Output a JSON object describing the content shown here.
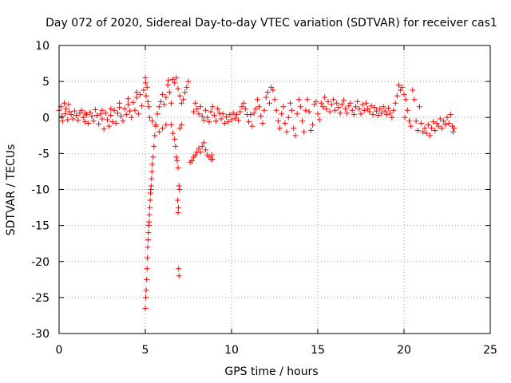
{
  "chart_data": {
    "type": "scatter",
    "title": "Day 072 of 2020, Sidereal Day-to-day VTEC variation (SDTVAR) for receiver cas1",
    "xlabel": "GPS time / hours",
    "ylabel": "SDTVAR / TECUs",
    "xlim": [
      0,
      25
    ],
    "ylim": [
      -30,
      10
    ],
    "xticks": [
      0,
      5,
      10,
      15,
      20,
      25
    ],
    "yticks": [
      -30,
      -25,
      -20,
      -15,
      -10,
      -5,
      0,
      5,
      10
    ],
    "grid": true,
    "marker": "+",
    "series": [
      {
        "name": "cas1",
        "color": "#ff0000",
        "points": [
          [
            0.0,
            1.0
          ],
          [
            0.1,
            1.5
          ],
          [
            0.15,
            0.2
          ],
          [
            0.2,
            -0.5
          ],
          [
            0.3,
            2.0
          ],
          [
            0.35,
            0.5
          ],
          [
            0.4,
            1.2
          ],
          [
            0.5,
            -0.3
          ],
          [
            0.55,
            1.8
          ],
          [
            0.6,
            0.8
          ],
          [
            0.7,
            0.4
          ],
          [
            0.8,
            -0.2
          ],
          [
            0.9,
            0.9
          ],
          [
            1.0,
            0.3
          ],
          [
            1.1,
            -0.4
          ],
          [
            1.2,
            0.6
          ],
          [
            1.3,
            1.0
          ],
          [
            1.4,
            0.0
          ],
          [
            1.5,
            -0.6
          ],
          [
            1.6,
            0.4
          ],
          [
            1.7,
            -0.8
          ],
          [
            1.8,
            0.7
          ],
          [
            1.9,
            0.2
          ],
          [
            2.0,
            -0.5
          ],
          [
            2.1,
            1.1
          ],
          [
            2.2,
            0.3
          ],
          [
            2.3,
            -0.9
          ],
          [
            2.4,
            0.5
          ],
          [
            2.5,
            -0.2
          ],
          [
            2.6,
            -1.6
          ],
          [
            2.7,
            0.6
          ],
          [
            2.8,
            -0.3
          ],
          [
            2.9,
            -1.2
          ],
          [
            3.0,
            0.3
          ],
          [
            3.1,
            -0.6
          ],
          [
            3.2,
            1.0
          ],
          [
            3.3,
            -0.8
          ],
          [
            3.4,
            0.6
          ],
          [
            3.5,
            1.4
          ],
          [
            3.6,
            0.2
          ],
          [
            3.7,
            -0.5
          ],
          [
            3.8,
            1.2
          ],
          [
            3.9,
            0.4
          ],
          [
            4.0,
            1.8
          ],
          [
            4.1,
            0.9
          ],
          [
            4.2,
            0.0
          ],
          [
            4.3,
            2.1
          ],
          [
            4.4,
            1.0
          ],
          [
            4.5,
            2.8
          ],
          [
            4.6,
            0.5
          ],
          [
            4.7,
            3.2
          ],
          [
            4.8,
            1.6
          ],
          [
            4.9,
            3.8
          ],
          [
            5.0,
            5.5
          ],
          [
            5.02,
            4.8
          ],
          [
            5.05,
            3.0
          ],
          [
            5.1,
            4.2
          ],
          [
            5.15,
            2.2
          ],
          [
            5.2,
            1.5
          ],
          [
            5.25,
            0.0
          ],
          [
            5.0,
            -26.5
          ],
          [
            5.03,
            -25.0
          ],
          [
            5.05,
            -24.0
          ],
          [
            5.08,
            -22.5
          ],
          [
            5.1,
            -21.0
          ],
          [
            5.12,
            -19.5
          ],
          [
            5.14,
            -18.0
          ],
          [
            5.16,
            -17.0
          ],
          [
            5.18,
            -16.0
          ],
          [
            5.2,
            -15.0
          ],
          [
            5.22,
            -14.5
          ],
          [
            5.24,
            -13.5
          ],
          [
            5.26,
            -12.5
          ],
          [
            5.28,
            -11.5
          ],
          [
            5.3,
            -10.5
          ],
          [
            5.32,
            -10.0
          ],
          [
            5.34,
            -9.5
          ],
          [
            5.36,
            -8.5
          ],
          [
            5.38,
            -7.5
          ],
          [
            5.4,
            -6.5
          ],
          [
            5.45,
            -5.5
          ],
          [
            5.5,
            -4.0
          ],
          [
            5.55,
            -2.5
          ],
          [
            5.6,
            -1.0
          ],
          [
            5.7,
            0.5
          ],
          [
            5.8,
            1.5
          ],
          [
            5.9,
            2.2
          ],
          [
            6.0,
            3.2
          ],
          [
            6.1,
            1.8
          ],
          [
            6.2,
            2.8
          ],
          [
            6.3,
            4.5
          ],
          [
            6.35,
            5.2
          ],
          [
            6.4,
            3.5
          ],
          [
            6.5,
            2.0
          ],
          [
            6.6,
            5.3
          ],
          [
            6.7,
            4.8
          ],
          [
            6.8,
            5.5
          ],
          [
            6.9,
            4.0
          ],
          [
            7.0,
            3.0
          ],
          [
            7.1,
            2.0
          ],
          [
            6.5,
            -1.0
          ],
          [
            6.6,
            -2.2
          ],
          [
            6.7,
            -3.0
          ],
          [
            6.75,
            -4.0
          ],
          [
            6.8,
            -5.5
          ],
          [
            6.85,
            -6.0
          ],
          [
            6.9,
            -7.0
          ],
          [
            6.95,
            -9.5
          ],
          [
            6.98,
            -10.0
          ],
          [
            6.88,
            -11.5
          ],
          [
            6.92,
            -12.5
          ],
          [
            6.9,
            -13.2
          ],
          [
            6.93,
            -21.0
          ],
          [
            6.95,
            -22.0
          ],
          [
            7.0,
            -1.5
          ],
          [
            7.1,
            -1.0
          ],
          [
            7.2,
            2.5
          ],
          [
            7.3,
            3.5
          ],
          [
            7.4,
            4.2
          ],
          [
            7.5,
            5.0
          ],
          [
            7.6,
            -6.2
          ],
          [
            7.7,
            -6.0
          ],
          [
            7.8,
            -5.5
          ],
          [
            7.9,
            -5.2
          ],
          [
            8.0,
            -4.8
          ],
          [
            8.1,
            -4.3
          ],
          [
            8.2,
            -4.8
          ],
          [
            8.3,
            -4.0
          ],
          [
            8.4,
            -3.5
          ],
          [
            8.5,
            -4.5
          ],
          [
            8.6,
            -5.2
          ],
          [
            8.7,
            -5.5
          ],
          [
            8.8,
            -5.8
          ],
          [
            8.85,
            -5.2
          ],
          [
            8.9,
            -5.8
          ],
          [
            5.4,
            -0.5
          ],
          [
            5.6,
            -1.2
          ],
          [
            5.8,
            -2.0
          ],
          [
            6.0,
            -1.5
          ],
          [
            6.2,
            -1.0
          ],
          [
            7.8,
            0.8
          ],
          [
            7.9,
            2.0
          ],
          [
            8.0,
            1.2
          ],
          [
            8.1,
            0.5
          ],
          [
            8.2,
            1.5
          ],
          [
            8.3,
            0.2
          ],
          [
            8.4,
            -0.4
          ],
          [
            8.5,
            1.0
          ],
          [
            8.6,
            0.0
          ],
          [
            8.7,
            -0.6
          ],
          [
            8.8,
            0.8
          ],
          [
            8.9,
            1.5
          ],
          [
            9.0,
            0.3
          ],
          [
            9.1,
            -0.5
          ],
          [
            9.2,
            1.2
          ],
          [
            9.3,
            0.6
          ],
          [
            9.4,
            -0.2
          ],
          [
            9.5,
            0.5
          ],
          [
            9.6,
            -0.8
          ],
          [
            9.7,
            0.1
          ],
          [
            9.8,
            -0.6
          ],
          [
            9.9,
            0.4
          ],
          [
            10.0,
            -0.3
          ],
          [
            10.1,
            0.6
          ],
          [
            10.2,
            -0.1
          ],
          [
            10.3,
            0.4
          ],
          [
            10.4,
            -0.4
          ],
          [
            10.5,
            0.8
          ],
          [
            10.6,
            1.5
          ],
          [
            10.7,
            2.0
          ],
          [
            10.8,
            1.2
          ],
          [
            10.9,
            0.4
          ],
          [
            11.0,
            -0.6
          ],
          [
            11.1,
            0.4
          ],
          [
            11.2,
            -1.2
          ],
          [
            11.3,
            0.6
          ],
          [
            11.4,
            1.2
          ],
          [
            11.5,
            2.5
          ],
          [
            11.6,
            1.5
          ],
          [
            11.7,
            0.2
          ],
          [
            11.8,
            -0.8
          ],
          [
            11.9,
            1.0
          ],
          [
            12.0,
            2.8
          ],
          [
            12.1,
            3.5
          ],
          [
            12.2,
            2.0
          ],
          [
            12.3,
            4.2
          ],
          [
            12.4,
            3.8
          ],
          [
            12.5,
            2.5
          ],
          [
            12.6,
            1.0
          ],
          [
            12.7,
            -0.5
          ],
          [
            12.8,
            -1.5
          ],
          [
            12.9,
            0.5
          ],
          [
            13.0,
            1.5
          ],
          [
            13.1,
            -0.8
          ],
          [
            13.2,
            -2.0
          ],
          [
            13.3,
            0.0
          ],
          [
            13.4,
            2.0
          ],
          [
            13.5,
            1.0
          ],
          [
            13.6,
            -1.5
          ],
          [
            13.7,
            -2.5
          ],
          [
            13.8,
            0.5
          ],
          [
            13.9,
            2.5
          ],
          [
            14.0,
            1.5
          ],
          [
            14.1,
            -0.5
          ],
          [
            14.2,
            -2.0
          ],
          [
            14.3,
            1.0
          ],
          [
            14.4,
            2.5
          ],
          [
            14.5,
            0.8
          ],
          [
            14.6,
            -1.8
          ],
          [
            14.7,
            -1.0
          ],
          [
            14.8,
            1.8
          ],
          [
            14.9,
            2.2
          ],
          [
            15.0,
            0.5
          ],
          [
            15.1,
            -0.3
          ],
          [
            15.2,
            2.0
          ],
          [
            15.3,
            1.5
          ],
          [
            15.4,
            2.8
          ],
          [
            15.5,
            1.2
          ],
          [
            15.6,
            2.2
          ],
          [
            15.7,
            0.8
          ],
          [
            15.8,
            1.8
          ],
          [
            15.9,
            2.5
          ],
          [
            16.0,
            1.0
          ],
          [
            16.1,
            2.0
          ],
          [
            16.2,
            1.4
          ],
          [
            16.3,
            0.6
          ],
          [
            16.4,
            1.8
          ],
          [
            16.5,
            2.4
          ],
          [
            16.6,
            1.2
          ],
          [
            16.7,
            0.6
          ],
          [
            16.8,
            1.6
          ],
          [
            16.9,
            2.0
          ],
          [
            17.0,
            1.0
          ],
          [
            17.1,
            0.4
          ],
          [
            17.2,
            1.5
          ],
          [
            17.3,
            2.2
          ],
          [
            17.4,
            1.2
          ],
          [
            17.5,
            0.5
          ],
          [
            17.6,
            1.8
          ],
          [
            17.7,
            1.0
          ],
          [
            17.8,
            2.0
          ],
          [
            17.9,
            1.2
          ],
          [
            18.0,
            0.8
          ],
          [
            18.1,
            1.6
          ],
          [
            18.2,
            0.4
          ],
          [
            18.3,
            1.4
          ],
          [
            18.4,
            0.9
          ],
          [
            18.5,
            0.3
          ],
          [
            18.6,
            1.2
          ],
          [
            18.7,
            0.6
          ],
          [
            18.8,
            1.5
          ],
          [
            18.9,
            0.9
          ],
          [
            19.0,
            0.4
          ],
          [
            19.1,
            1.3
          ],
          [
            19.2,
            0.6
          ],
          [
            19.3,
            0.0
          ],
          [
            19.4,
            1.0
          ],
          [
            19.5,
            2.0
          ],
          [
            19.6,
            3.0
          ],
          [
            19.7,
            4.5
          ],
          [
            19.8,
            3.8
          ],
          [
            19.9,
            4.2
          ],
          [
            20.0,
            3.2
          ],
          [
            20.05,
            0.0
          ],
          [
            20.1,
            2.5
          ],
          [
            20.2,
            1.0
          ],
          [
            20.3,
            -0.5
          ],
          [
            20.4,
            -1.2
          ],
          [
            20.5,
            3.8
          ],
          [
            20.6,
            2.5
          ],
          [
            20.7,
            -0.5
          ],
          [
            20.8,
            -1.8
          ],
          [
            20.9,
            1.5
          ],
          [
            21.0,
            -0.8
          ],
          [
            21.1,
            -2.0
          ],
          [
            21.2,
            -1.5
          ],
          [
            21.3,
            -2.2
          ],
          [
            21.4,
            -1.0
          ],
          [
            21.5,
            -2.5
          ],
          [
            21.6,
            -1.5
          ],
          [
            21.7,
            -0.6
          ],
          [
            21.8,
            -1.8
          ],
          [
            21.9,
            -0.8
          ],
          [
            22.0,
            -1.2
          ],
          [
            22.1,
            -0.2
          ],
          [
            22.2,
            -1.5
          ],
          [
            22.3,
            -0.5
          ],
          [
            22.4,
            -1.0
          ],
          [
            22.5,
            0.0
          ],
          [
            22.6,
            -0.8
          ],
          [
            22.7,
            0.4
          ],
          [
            22.8,
            -1.2
          ],
          [
            22.85,
            -2.0
          ],
          [
            22.9,
            -1.5
          ],
          [
            2.5,
            1.0
          ],
          [
            3.0,
            1.2
          ],
          [
            3.5,
            2.0
          ],
          [
            4.0,
            2.6
          ],
          [
            4.5,
            3.5
          ],
          [
            1.5,
            0.6
          ]
        ]
      }
    ]
  }
}
